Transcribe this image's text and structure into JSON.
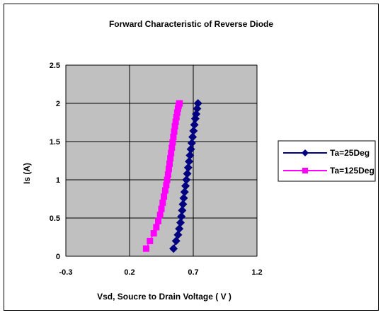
{
  "chart_data": {
    "type": "line",
    "title": "Forward Characteristic of Reverse Diode",
    "xlabel": "Vsd, Soucre to Drain Voltage ( V )",
    "ylabel": "Is (A)",
    "xlim": [
      -0.3,
      1.2
    ],
    "ylim": [
      0,
      2.5
    ],
    "x_ticks": [
      -0.3,
      0.2,
      0.7,
      1.2
    ],
    "x_tick_labels": [
      "-0.3",
      "0.2",
      "0.7",
      "1.2"
    ],
    "y_ticks": [
      0,
      0.5,
      1,
      1.5,
      2,
      2.5
    ],
    "y_tick_labels": [
      "0",
      "0.5",
      "1",
      "1.5",
      "2",
      "2.5"
    ],
    "grid": true,
    "plot_background": "#c0c0c0",
    "legend_position": "right",
    "series": [
      {
        "name": "Ta=25Deg",
        "color": "#000080",
        "marker": "diamond",
        "x": [
          0.545,
          0.565,
          0.58,
          0.59,
          0.6,
          0.607,
          0.613,
          0.619,
          0.625,
          0.632,
          0.639,
          0.646,
          0.653,
          0.66,
          0.667,
          0.674,
          0.681,
          0.688,
          0.695,
          0.702,
          0.709,
          0.716,
          0.723,
          0.73,
          0.737
        ],
        "y": [
          0.1,
          0.2,
          0.28,
          0.36,
          0.44,
          0.52,
          0.6,
          0.68,
          0.76,
          0.84,
          0.92,
          1.0,
          1.08,
          1.16,
          1.24,
          1.32,
          1.4,
          1.48,
          1.56,
          1.64,
          1.72,
          1.8,
          1.86,
          1.93,
          2.0
        ]
      },
      {
        "name": "Ta=125Deg",
        "color": "#ff00ff",
        "marker": "square",
        "x": [
          0.33,
          0.36,
          0.39,
          0.41,
          0.425,
          0.44,
          0.45,
          0.46,
          0.47,
          0.48,
          0.488,
          0.495,
          0.502,
          0.508,
          0.514,
          0.52,
          0.526,
          0.532,
          0.538,
          0.544,
          0.55,
          0.556,
          0.562,
          0.568,
          0.574,
          0.58,
          0.585,
          0.59,
          0.592,
          0.593
        ],
        "y": [
          0.1,
          0.2,
          0.3,
          0.38,
          0.46,
          0.54,
          0.62,
          0.7,
          0.78,
          0.86,
          0.93,
          1.0,
          1.07,
          1.14,
          1.21,
          1.28,
          1.35,
          1.42,
          1.49,
          1.56,
          1.63,
          1.7,
          1.76,
          1.82,
          1.88,
          1.93,
          1.97,
          2.0,
          2.0,
          2.0
        ]
      }
    ]
  }
}
